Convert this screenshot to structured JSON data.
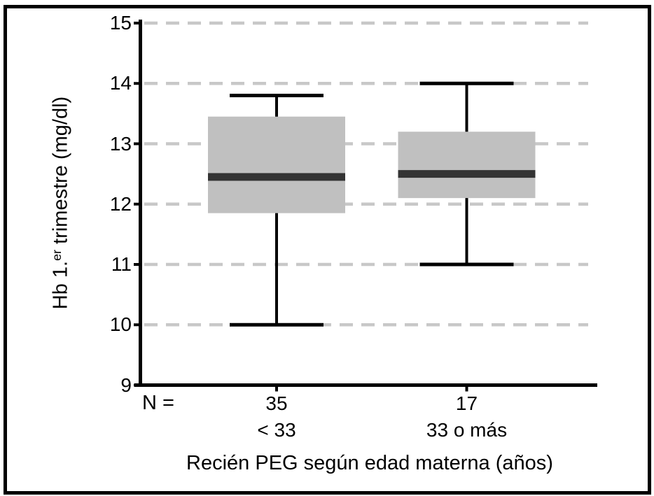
{
  "chart_data": {
    "type": "boxplot",
    "title": "",
    "ylabel_parts": {
      "prefix": "Hb 1.",
      "superscript": "er",
      "suffix": " trimestre (mg/dl)"
    },
    "xlabel": "Recién PEG según edad materna (años)",
    "n_prefix_label": "N =",
    "ylim": [
      9,
      15
    ],
    "yticks": [
      15,
      14,
      13,
      12,
      11,
      10,
      9
    ],
    "gridline_values": [
      15,
      14,
      13,
      12,
      11,
      10
    ],
    "grid_on": true,
    "legend_position": "none",
    "series": [
      {
        "category": "< 33",
        "n": "35",
        "whisker_low": 10.0,
        "q1": 11.85,
        "median": 12.45,
        "q3": 13.45,
        "whisker_high": 13.8
      },
      {
        "category": "33 o más",
        "n": "17",
        "whisker_low": 11.0,
        "q1": 12.1,
        "median": 12.5,
        "q3": 13.2,
        "whisker_high": 14.0
      }
    ],
    "colors": {
      "box_fill": "#c0c0c0",
      "median_band": "#333333",
      "line": "#000000",
      "gridline": "#c8c8c8",
      "background": "#ffffff",
      "frame_border": "#000000"
    }
  }
}
